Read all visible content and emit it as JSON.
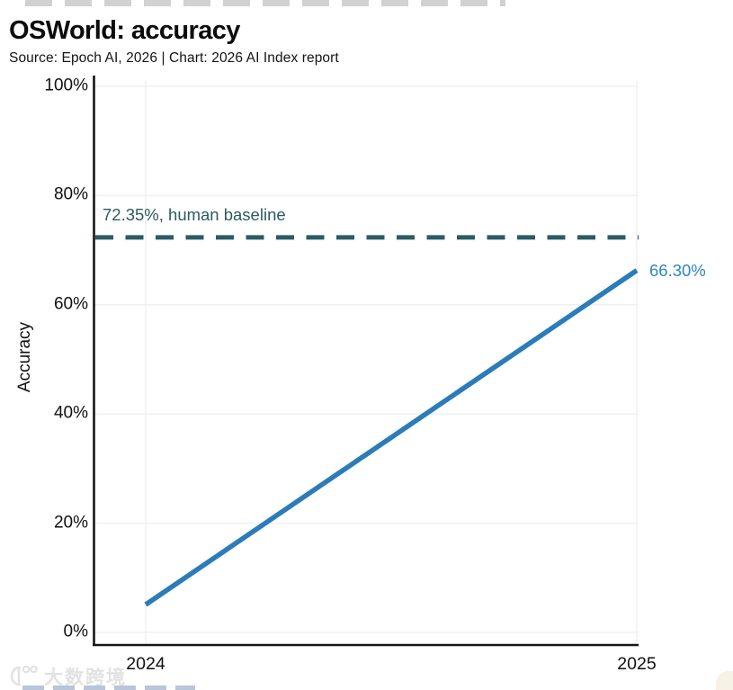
{
  "header": {
    "title": "OSWorld: accuracy",
    "source": "Source: Epoch AI, 2026 | Chart: 2026 AI Index report"
  },
  "chart_data": {
    "type": "line",
    "title": "OSWorld: accuracy",
    "subtitle": "Source: Epoch AI, 2026 | Chart: 2026 AI Index report",
    "xlabel": "",
    "ylabel": "Accuracy",
    "x": [
      2024,
      2025
    ],
    "xtick_labels": [
      "2024",
      "2025"
    ],
    "ytick_values": [
      0,
      20,
      40,
      60,
      80,
      100
    ],
    "ytick_labels": [
      "0%",
      "20%",
      "40%",
      "60%",
      "80%",
      "100%"
    ],
    "ylim": [
      0,
      100
    ],
    "grid": true,
    "legend": "none",
    "series": [
      {
        "name": "OSWorld accuracy",
        "color": "#2b7cb9",
        "points": [
          {
            "x": 2024,
            "y": 5.1
          },
          {
            "x": 2025,
            "y": 66.3
          }
        ]
      }
    ],
    "annotations": [
      {
        "type": "dashed-hline",
        "value": 72.35,
        "label": "72.35%, human baseline",
        "color": "#2b5c63"
      },
      {
        "type": "point-label",
        "x": 2025,
        "value": 66.3,
        "label": "66.30%",
        "color": "#2e86c4"
      }
    ]
  },
  "watermark": {
    "text": "大数跨境"
  },
  "colors": {
    "background": "#ffffff",
    "text": "#111111",
    "axis": "#161616",
    "grid": "#f1f1f1",
    "line_blue": "#2b7cb9",
    "label_blue": "#2e86c4",
    "baseline_teal": "#2b5c63",
    "watermark_gray": "#e2e2e2"
  }
}
